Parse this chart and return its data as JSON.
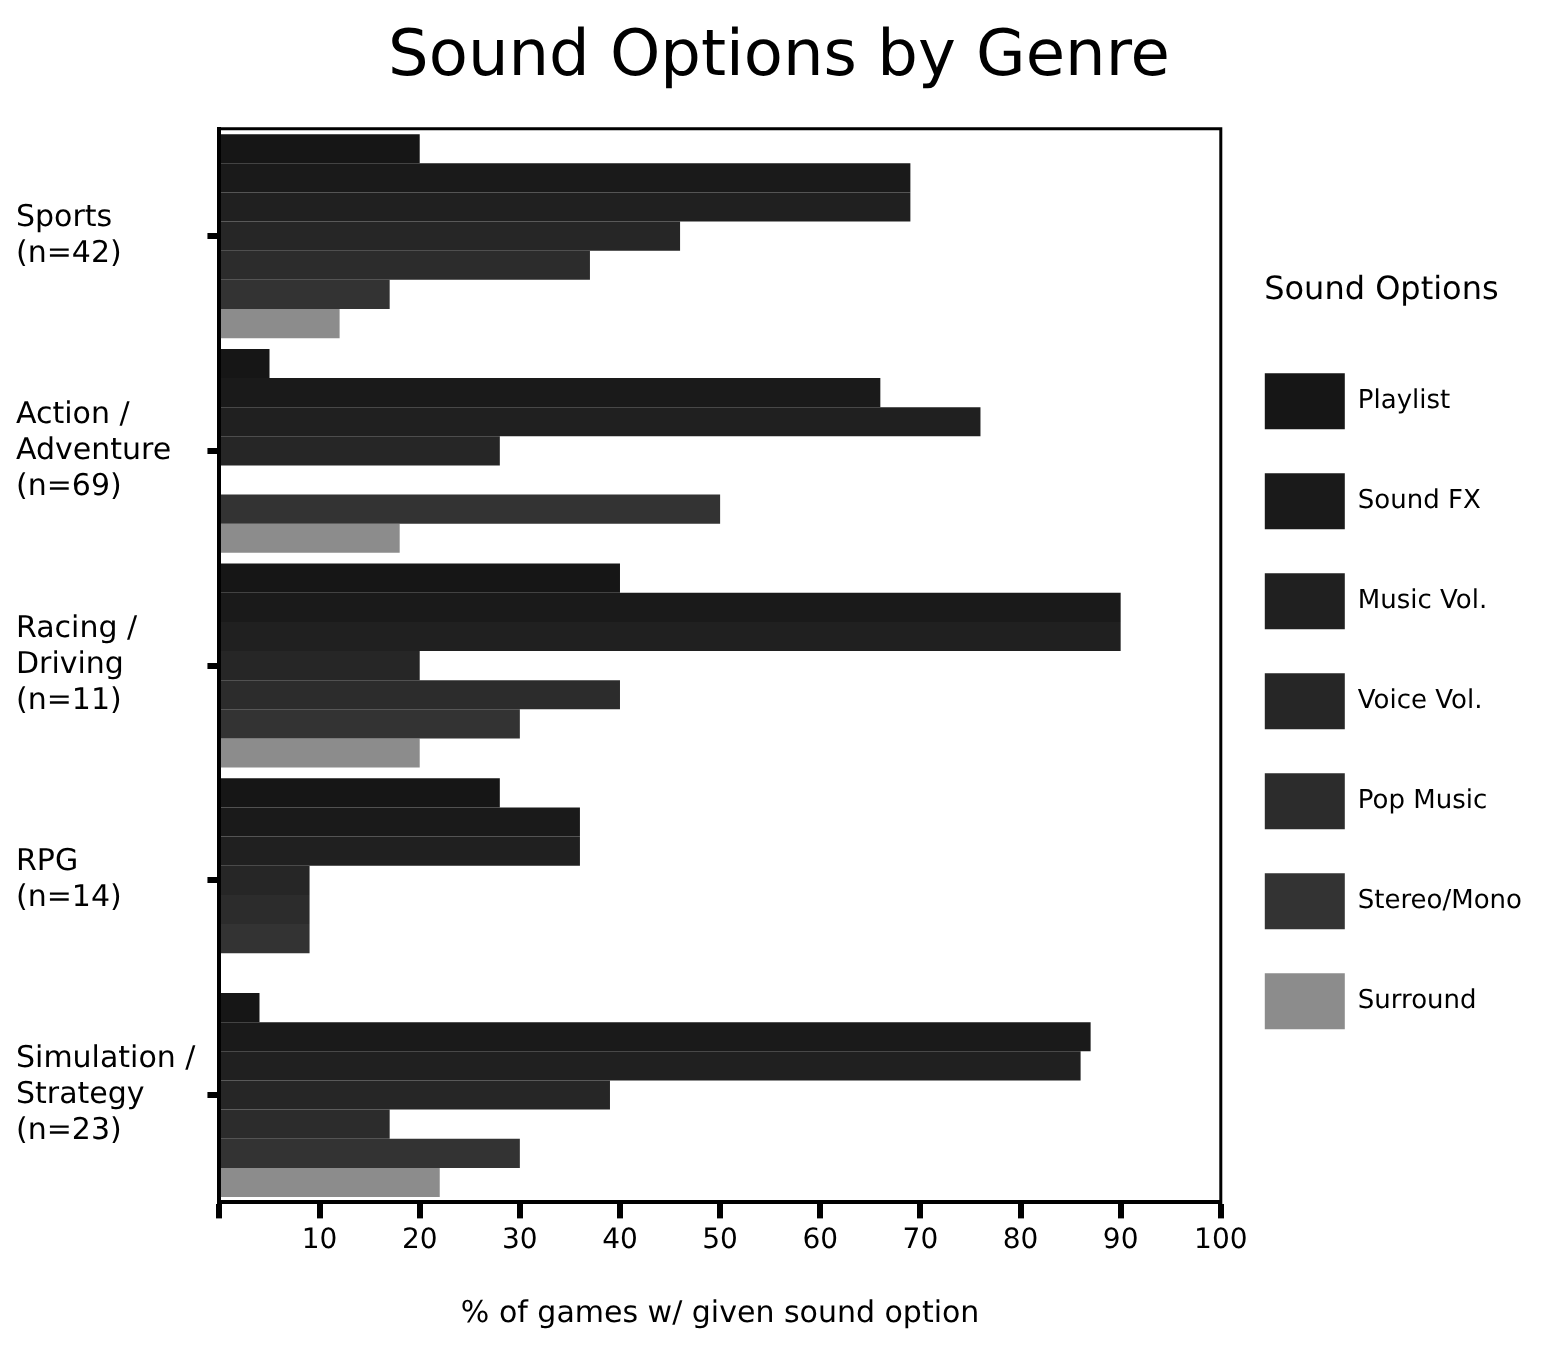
{
  "chart_data": {
    "type": "bar",
    "orientation": "horizontal",
    "title": "Sound Options by Genre",
    "xlabel": "% of games w/ given sound option",
    "legend_title": "Sound Options",
    "legend": "right",
    "categories": [
      "Sports\n(n=42)",
      "Action /\nAdventure\n(n=69)",
      "Racing /\nDriving\n(n=11)",
      "RPG\n(n=14)",
      "Simulation /\nStrategy\n(n=23)"
    ],
    "series": [
      {
        "name": "Playlist",
        "color": "#161616",
        "values": [
          20,
          5,
          40,
          28,
          4
        ]
      },
      {
        "name": "Sound FX",
        "color": "#1a1a1a",
        "values": [
          69,
          66,
          90,
          36,
          87
        ]
      },
      {
        "name": "Music Vol.",
        "color": "#202020",
        "values": [
          69,
          76,
          90,
          36,
          86
        ]
      },
      {
        "name": "Voice Vol.",
        "color": "#262626",
        "values": [
          46,
          28,
          20,
          9,
          39
        ]
      },
      {
        "name": "Pop Music",
        "color": "#2c2c2c",
        "values": [
          37,
          0,
          40,
          9,
          17
        ]
      },
      {
        "name": "Stereo/Mono",
        "color": "#333333",
        "values": [
          17,
          50,
          30,
          9,
          30
        ]
      },
      {
        "name": "Surround",
        "color": "#8c8c8c",
        "values": [
          12,
          18,
          20,
          0,
          22
        ]
      }
    ],
    "xlim": [
      0,
      100
    ],
    "xticks": [
      {
        "value": 0,
        "label": null
      },
      10,
      20,
      30,
      40,
      50,
      60,
      70,
      80,
      90,
      100
    ],
    "grid": false
  }
}
